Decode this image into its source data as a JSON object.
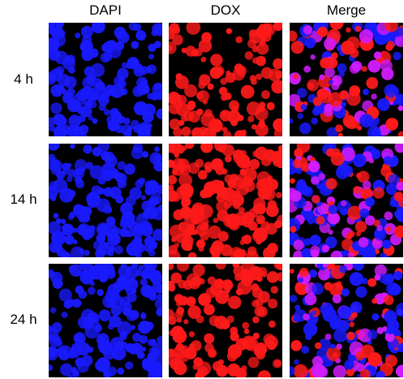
{
  "columns": [
    "DAPI",
    "DOX",
    "Merge"
  ],
  "rows": [
    {
      "label": "4 h"
    },
    {
      "label": "14 h"
    },
    {
      "label": "24 h"
    }
  ],
  "colors": {
    "dapi": "#1a1aff",
    "dox": "#ff1a1a",
    "merge_overlap": "#d21cff",
    "background": "#000000"
  }
}
